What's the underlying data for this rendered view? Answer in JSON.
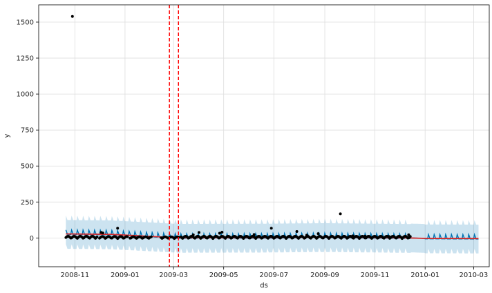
{
  "chart_data": {
    "type": "scatter",
    "title": "",
    "xlabel": "ds",
    "ylabel": "y",
    "ylim": [
      -200,
      1620
    ],
    "xlim": [
      "2008-09-18",
      "2010-03-20"
    ],
    "grid": true,
    "x_ticks": [
      "2008-11",
      "2009-01",
      "2009-03",
      "2009-05",
      "2009-07",
      "2009-09",
      "2009-11",
      "2010-01",
      "2010-03"
    ],
    "x_tick_dates": [
      "2008-11-01",
      "2009-01-01",
      "2009-03-01",
      "2009-05-01",
      "2009-07-01",
      "2009-09-01",
      "2009-11-01",
      "2010-01-01",
      "2010-03-01"
    ],
    "y_ticks": [
      0,
      250,
      500,
      750,
      1000,
      1250,
      1500
    ],
    "changepoints": [
      "2009-02-24",
      "2009-03-07"
    ],
    "forecast_range": [
      "2008-10-21",
      "2010-03-07"
    ],
    "observed_range": [
      "2008-10-21",
      "2009-12-14"
    ],
    "weekly_amplitude": 28,
    "interval_halfwidth": 100,
    "trend": [
      {
        "x": "2008-10-21",
        "y": 28
      },
      {
        "x": "2008-12-15",
        "y": 25
      },
      {
        "x": "2009-02-24",
        "y": 4
      },
      {
        "x": "2009-03-07",
        "y": 1
      },
      {
        "x": "2009-06-15",
        "y": 2
      },
      {
        "x": "2009-09-01",
        "y": 6
      },
      {
        "x": "2009-12-14",
        "y": 0
      },
      {
        "x": "2010-01-01",
        "y": -3
      },
      {
        "x": "2010-03-07",
        "y": -4
      }
    ],
    "points": [
      {
        "x": "2008-10-29",
        "y": 1540
      },
      {
        "x": "2008-12-23",
        "y": 68
      },
      {
        "x": "2009-06-28",
        "y": 68
      },
      {
        "x": "2009-09-20",
        "y": 168
      },
      {
        "x": "2008-12-03",
        "y": 38
      },
      {
        "x": "2008-12-05",
        "y": 35
      },
      {
        "x": "2009-04-01",
        "y": 38
      },
      {
        "x": "2009-04-26",
        "y": 33
      },
      {
        "x": "2009-04-29",
        "y": 40
      },
      {
        "x": "2009-07-29",
        "y": 45
      },
      {
        "x": "2009-08-24",
        "y": 30
      },
      {
        "x": "2009-12-12",
        "y": 22
      },
      {
        "x": "2009-03-25",
        "y": 22
      },
      {
        "x": "2009-06-07",
        "y": 24
      },
      {
        "x": "2009-08-10",
        "y": 20
      },
      {
        "x": "2009-10-05",
        "y": 14
      },
      {
        "x": "2009-10-20",
        "y": 12
      },
      {
        "x": "2009-11-18",
        "y": 10
      }
    ],
    "dense_segments": [
      {
        "from": "2008-10-21",
        "to": "2008-11-28",
        "y_min": -4,
        "y_max": 12
      },
      {
        "from": "2008-12-01",
        "to": "2009-01-04",
        "y_min": -4,
        "y_max": 10
      },
      {
        "from": "2009-01-07",
        "to": "2009-02-02",
        "y_min": -4,
        "y_max": 8
      },
      {
        "from": "2009-02-14",
        "to": "2009-03-07",
        "y_min": -4,
        "y_max": 8
      },
      {
        "from": "2009-03-10",
        "to": "2009-12-14",
        "y_min": -4,
        "y_max": 12
      }
    ],
    "colors": {
      "observed": "#000000",
      "forecast": "#0072b2",
      "interval": "#0072b2",
      "trend": "#d62728",
      "changepoint": "#ff0000",
      "grid": "#dddddd"
    }
  }
}
